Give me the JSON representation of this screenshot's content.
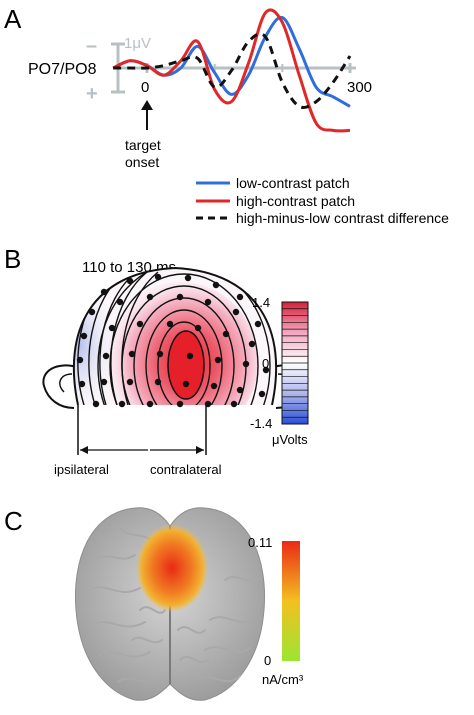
{
  "panels": {
    "a": {
      "letter": "A",
      "electrode": "PO7/PO8",
      "scale_label": "1μV",
      "minus_sign": "–",
      "plus_sign": "+",
      "x_tick_zero": "0",
      "x_tick_end": "300",
      "onset_line1": "target",
      "onset_line2": "onset",
      "legend": [
        {
          "label": "low-contrast patch",
          "color": "#2f6fdc",
          "style": "solid"
        },
        {
          "label": "high-contrast patch",
          "color": "#e02828",
          "style": "solid"
        },
        {
          "label": "high-minus-low contrast difference",
          "color": "#111111",
          "style": "dashed"
        }
      ]
    },
    "b": {
      "letter": "B",
      "time_window": "110 to 130 ms",
      "colorbar_max": "1.4",
      "colorbar_mid": "0",
      "colorbar_min": "-1.4",
      "colorbar_unit": "μVolts",
      "left_label": "ipsilateral",
      "right_label": "contralateral"
    },
    "c": {
      "letter": "C",
      "colorbar_max": "0.11",
      "colorbar_min": "0",
      "colorbar_unit": "nA/cm³"
    }
  },
  "chart_data": {
    "type": "line",
    "x_unit": "ms",
    "xlim": [
      -50,
      300
    ],
    "x_ticks": [
      0,
      300
    ],
    "y_reference": "1 μV scale bar, negative up",
    "series": [
      {
        "name": "low-contrast patch",
        "x": [
          -50,
          -25,
          0,
          25,
          50,
          75,
          100,
          125,
          150,
          175,
          200,
          225,
          250,
          275,
          300
        ],
        "values": [
          0,
          0.3,
          0.1,
          -0.3,
          0,
          0.9,
          -0.2,
          -1.1,
          -0.3,
          1.3,
          2.1,
          0.8,
          -0.8,
          -1.2,
          -1.6
        ]
      },
      {
        "name": "high-contrast patch",
        "x": [
          -50,
          -25,
          0,
          25,
          50,
          75,
          100,
          125,
          150,
          175,
          200,
          225,
          250,
          275,
          300
        ],
        "values": [
          0,
          0.3,
          0.1,
          -0.3,
          0.3,
          1.1,
          -0.9,
          -1.4,
          0.2,
          2.3,
          1.9,
          -0.3,
          -2.3,
          -2.6,
          -2.6
        ]
      },
      {
        "name": "high-minus-low contrast difference",
        "x": [
          -50,
          -25,
          0,
          25,
          50,
          75,
          100,
          125,
          150,
          175,
          200,
          225,
          250,
          275,
          300
        ],
        "values": [
          0,
          0,
          0,
          0.1,
          0.3,
          0.4,
          -0.8,
          -0.1,
          1.1,
          1.3,
          -0.6,
          -1.6,
          -1.4,
          -0.6,
          0.5
        ]
      }
    ]
  }
}
